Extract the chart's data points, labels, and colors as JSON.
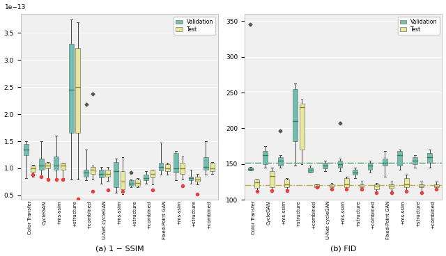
{
  "categories": [
    "Color Transfer",
    "CycleGAN",
    "+ms-ssim",
    "+structure",
    "+combined",
    "U-Net cycleGAN",
    "+ms-ssim",
    "+structure",
    "+combined",
    "Fixed-Point GAN",
    "+ms-ssim",
    "+structure",
    "+combined"
  ],
  "ssim_val": [
    {
      "med": 1.35,
      "q1": 1.25,
      "q3": 1.45,
      "whislo": 0.82,
      "whishi": 1.5,
      "fliers_hi": [],
      "fliers_lo": []
    },
    {
      "med": 1.05,
      "q1": 0.98,
      "q3": 1.18,
      "whislo": 0.85,
      "whishi": 1.5,
      "fliers_hi": [],
      "fliers_lo": []
    },
    {
      "med": 1.05,
      "q1": 0.98,
      "q3": 1.22,
      "whislo": 0.8,
      "whishi": 1.6,
      "fliers_hi": [],
      "fliers_lo": []
    },
    {
      "med": 2.45,
      "q1": 1.65,
      "q3": 3.3,
      "whislo": 0.8,
      "whishi": 3.75,
      "fliers_hi": [],
      "fliers_lo": []
    },
    {
      "med": 0.92,
      "q1": 0.85,
      "q3": 0.98,
      "whislo": 0.78,
      "whishi": 1.35,
      "fliers_hi": [
        2.18
      ],
      "fliers_lo": []
    },
    {
      "med": 0.9,
      "q1": 0.83,
      "q3": 0.97,
      "whislo": 0.72,
      "whishi": 1.02,
      "fliers_hi": [],
      "fliers_lo": []
    },
    {
      "med": 0.95,
      "q1": 0.65,
      "q3": 1.12,
      "whislo": 0.55,
      "whishi": 1.18,
      "fliers_hi": [],
      "fliers_lo": []
    },
    {
      "med": 0.72,
      "q1": 0.68,
      "q3": 0.78,
      "whislo": 0.65,
      "whishi": 0.8,
      "fliers_hi": [
        0.92
      ],
      "fliers_lo": []
    },
    {
      "med": 0.82,
      "q1": 0.78,
      "q3": 0.88,
      "whislo": 0.72,
      "whishi": 0.95,
      "fliers_hi": [],
      "fliers_lo": []
    },
    {
      "med": 1.02,
      "q1": 0.96,
      "q3": 1.1,
      "whislo": 0.88,
      "whishi": 1.48,
      "fliers_hi": [],
      "fliers_lo": []
    },
    {
      "med": 1.0,
      "q1": 0.92,
      "q3": 1.28,
      "whislo": 0.78,
      "whishi": 1.32,
      "fliers_hi": [],
      "fliers_lo": []
    },
    {
      "med": 0.82,
      "q1": 0.78,
      "q3": 0.85,
      "whislo": 0.72,
      "whishi": 0.98,
      "fliers_hi": [],
      "fliers_lo": []
    },
    {
      "med": 1.02,
      "q1": 0.98,
      "q3": 1.2,
      "whislo": 0.88,
      "whishi": 1.5,
      "fliers_hi": [],
      "fliers_lo": []
    }
  ],
  "ssim_test": [
    {
      "med": 1.0,
      "q1": 0.93,
      "q3": 1.05,
      "whislo": 0.85,
      "whishi": 1.07,
      "fliers_hi": [],
      "fliers_lo": []
    },
    {
      "med": 1.05,
      "q1": 1.0,
      "q3": 1.1,
      "whislo": 0.82,
      "whishi": 1.12,
      "fliers_hi": [],
      "fliers_lo": []
    },
    {
      "med": 1.05,
      "q1": 0.97,
      "q3": 1.1,
      "whislo": 0.82,
      "whishi": 1.1,
      "fliers_hi": [],
      "fliers_lo": []
    },
    {
      "med": 2.5,
      "q1": 1.65,
      "q3": 3.22,
      "whislo": 0.8,
      "whishi": 3.7,
      "fliers_hi": [],
      "fliers_lo": []
    },
    {
      "med": 0.98,
      "q1": 0.9,
      "q3": 1.02,
      "whislo": 0.8,
      "whishi": 1.05,
      "fliers_hi": [
        2.38
      ],
      "fliers_lo": []
    },
    {
      "med": 0.9,
      "q1": 0.85,
      "q3": 0.98,
      "whislo": 0.77,
      "whishi": 1.02,
      "fliers_hi": [],
      "fliers_lo": []
    },
    {
      "med": 0.75,
      "q1": 0.62,
      "q3": 0.95,
      "whislo": 0.52,
      "whishi": 1.2,
      "fliers_hi": [],
      "fliers_lo": []
    },
    {
      "med": 0.73,
      "q1": 0.68,
      "q3": 0.8,
      "whislo": 0.65,
      "whishi": 0.82,
      "fliers_hi": [],
      "fliers_lo": []
    },
    {
      "med": 0.9,
      "q1": 0.83,
      "q3": 0.97,
      "whislo": 0.7,
      "whishi": 0.98,
      "fliers_hi": [],
      "fliers_lo": []
    },
    {
      "med": 1.0,
      "q1": 0.95,
      "q3": 1.08,
      "whislo": 0.88,
      "whishi": 1.1,
      "fliers_hi": [],
      "fliers_lo": []
    },
    {
      "med": 1.0,
      "q1": 0.9,
      "q3": 1.1,
      "whislo": 0.8,
      "whishi": 1.22,
      "fliers_hi": [],
      "fliers_lo": []
    },
    {
      "med": 0.8,
      "q1": 0.76,
      "q3": 0.85,
      "whislo": 0.7,
      "whishi": 0.9,
      "fliers_hi": [],
      "fliers_lo": []
    },
    {
      "med": 1.0,
      "q1": 0.95,
      "q3": 1.1,
      "whislo": 0.9,
      "whishi": 1.12,
      "fliers_hi": [],
      "fliers_lo": []
    }
  ],
  "ssim_red_val": [
    null,
    0.85,
    0.8,
    null,
    null,
    null,
    null,
    null,
    null,
    null,
    null,
    null,
    null
  ],
  "ssim_red_test": [
    0.88,
    0.8,
    0.8,
    0.43,
    0.58,
    0.6,
    0.58,
    null,
    0.6,
    null,
    0.68,
    0.52,
    null
  ],
  "fid_val": [
    {
      "med": 143,
      "q1": 141,
      "q3": 145,
      "whislo": 141,
      "whishi": 146,
      "fliers_hi": [
        346
      ],
      "fliers_lo": []
    },
    {
      "med": 162,
      "q1": 150,
      "q3": 168,
      "whislo": 145,
      "whishi": 175,
      "fliers_hi": [],
      "fliers_lo": []
    },
    {
      "med": 155,
      "q1": 148,
      "q3": 160,
      "whislo": 145,
      "whishi": 162,
      "fliers_hi": [
        197
      ],
      "fliers_lo": []
    },
    {
      "med": 210,
      "q1": 182,
      "q3": 255,
      "whislo": 148,
      "whishi": 263,
      "fliers_hi": [],
      "fliers_lo": []
    },
    {
      "med": 142,
      "q1": 138,
      "q3": 145,
      "whislo": 138,
      "whishi": 148,
      "fliers_hi": [],
      "fliers_lo": []
    },
    {
      "med": 148,
      "q1": 144,
      "q3": 152,
      "whislo": 140,
      "whishi": 155,
      "fliers_hi": [],
      "fliers_lo": []
    },
    {
      "med": 150,
      "q1": 145,
      "q3": 155,
      "whislo": 140,
      "whishi": 158,
      "fliers_hi": [
        207
      ],
      "fliers_lo": []
    },
    {
      "med": 138,
      "q1": 135,
      "q3": 142,
      "whislo": 130,
      "whishi": 145,
      "fliers_hi": [],
      "fliers_lo": []
    },
    {
      "med": 148,
      "q1": 142,
      "q3": 152,
      "whislo": 138,
      "whishi": 155,
      "fliers_hi": [],
      "fliers_lo": []
    },
    {
      "med": 152,
      "q1": 148,
      "q3": 158,
      "whislo": 132,
      "whishi": 168,
      "fliers_hi": [],
      "fliers_lo": []
    },
    {
      "med": 162,
      "q1": 148,
      "q3": 168,
      "whislo": 142,
      "whishi": 170,
      "fliers_hi": [],
      "fliers_lo": []
    },
    {
      "med": 155,
      "q1": 150,
      "q3": 160,
      "whislo": 145,
      "whishi": 162,
      "fliers_hi": [],
      "fliers_lo": []
    },
    {
      "med": 160,
      "q1": 152,
      "q3": 165,
      "whislo": 145,
      "whishi": 170,
      "fliers_hi": [],
      "fliers_lo": []
    }
  ],
  "fid_test": [
    {
      "med": 124,
      "q1": 117,
      "q3": 128,
      "whislo": 112,
      "whishi": 128,
      "fliers_hi": [],
      "fliers_lo": []
    },
    {
      "med": 133,
      "q1": 118,
      "q3": 140,
      "whislo": 113,
      "whishi": 145,
      "fliers_hi": [],
      "fliers_lo": []
    },
    {
      "med": 122,
      "q1": 118,
      "q3": 128,
      "whislo": 115,
      "whishi": 130,
      "fliers_hi": [],
      "fliers_lo": []
    },
    {
      "med": 230,
      "q1": 170,
      "q3": 235,
      "whislo": 150,
      "whishi": 240,
      "fliers_hi": [],
      "fliers_lo": []
    },
    {
      "med": 120,
      "q1": 118,
      "q3": 122,
      "whislo": 118,
      "whishi": 122,
      "fliers_hi": [],
      "fliers_lo": []
    },
    {
      "med": 120,
      "q1": 118,
      "q3": 122,
      "whislo": 115,
      "whishi": 123,
      "fliers_hi": [],
      "fliers_lo": []
    },
    {
      "med": 122,
      "q1": 118,
      "q3": 130,
      "whislo": 115,
      "whishi": 132,
      "fliers_hi": [],
      "fliers_lo": []
    },
    {
      "med": 120,
      "q1": 118,
      "q3": 122,
      "whislo": 115,
      "whishi": 125,
      "fliers_hi": [],
      "fliers_lo": []
    },
    {
      "med": 120,
      "q1": 115,
      "q3": 122,
      "whislo": 110,
      "whishi": 123,
      "fliers_hi": [],
      "fliers_lo": []
    },
    {
      "med": 120,
      "q1": 116,
      "q3": 122,
      "whislo": 113,
      "whishi": 125,
      "fliers_hi": [],
      "fliers_lo": []
    },
    {
      "med": 122,
      "q1": 118,
      "q3": 130,
      "whislo": 112,
      "whishi": 135,
      "fliers_hi": [],
      "fliers_lo": []
    },
    {
      "med": 120,
      "q1": 118,
      "q3": 122,
      "whislo": 110,
      "whishi": 125,
      "fliers_hi": [],
      "fliers_lo": []
    },
    {
      "med": 120,
      "q1": 118,
      "q3": 122,
      "whislo": 115,
      "whishi": 125,
      "fliers_hi": [],
      "fliers_lo": []
    }
  ],
  "fid_red_val": [
    null,
    null,
    null,
    null,
    null,
    null,
    null,
    null,
    null,
    null,
    null,
    null,
    null
  ],
  "fid_red_test": [
    112,
    113,
    113,
    null,
    118,
    115,
    115,
    115,
    110,
    110,
    112,
    110,
    115
  ],
  "val_color": "#6dbfb0",
  "test_color": "#e8e89a",
  "val_median_color": "#3a7a5a",
  "test_median_color": "#8a8a30",
  "edge_color": "#888888",
  "whisker_color": "#444444",
  "flier_color": "#555555",
  "red_color": "#e84040",
  "fid_hline_val": 152,
  "fid_hline_test": 121,
  "fid_hline_val_color": "#4a9a60",
  "fid_hline_test_color": "#c8a832",
  "ssim_ylim": [
    0.42,
    3.85
  ],
  "fid_ylim": [
    100,
    360
  ],
  "ssim_yticks": [
    0.5,
    1.0,
    1.5,
    2.0,
    2.5,
    3.0,
    3.5
  ],
  "fid_yticks": [
    100,
    150,
    200,
    250,
    300,
    350
  ],
  "subtitle_a": "(a) 1 − SSIM",
  "subtitle_b": "(b) FID",
  "bg_color": "#f0f0f0"
}
